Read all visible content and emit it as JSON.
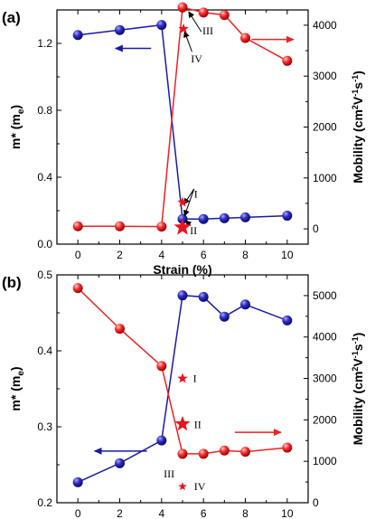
{
  "colors": {
    "blue": "#1a1aa6",
    "red": "#ee2222",
    "star": "#e8141e",
    "axis": "#000000"
  },
  "chart_data": [
    {
      "type": "line",
      "panel_label": "(a)",
      "xlabel": "Strain (%)",
      "ylabel_left": "m* (m",
      "ylabel_left_sub": "e",
      "ylabel_left_end": ")",
      "ylabel_right": "Mobility (cm",
      "ylabel_right_sup1": "2",
      "ylabel_right_mid": "V",
      "ylabel_right_sup2": "-1",
      "ylabel_right_mid2": "s",
      "ylabel_right_sup3": "-1",
      "ylabel_right_end": ")",
      "xlim": [
        -1,
        11
      ],
      "xticks": [
        0,
        2,
        4,
        6,
        8,
        10
      ],
      "ylim_left": [
        0.0,
        1.4
      ],
      "yticks_left": [
        0.0,
        0.4,
        0.8,
        1.2
      ],
      "ytick_labels_left": [
        "0.0",
        "0.4",
        "0.8",
        "1.2"
      ],
      "ylim_right": [
        -300,
        4300
      ],
      "yticks_right": [
        0,
        1000,
        2000,
        3000,
        4000
      ],
      "series": [
        {
          "axis": "left",
          "color": "blue",
          "x": [
            0,
            2,
            4,
            5,
            6,
            7,
            8,
            10
          ],
          "y": [
            1.25,
            1.28,
            1.31,
            0.15,
            0.15,
            0.155,
            0.16,
            0.17
          ]
        },
        {
          "axis": "right",
          "color": "red",
          "x": [
            0,
            2,
            4,
            5,
            6,
            7,
            8,
            10
          ],
          "y": [
            50,
            50,
            45,
            4350,
            4250,
            4200,
            3750,
            3300
          ]
        }
      ],
      "stars": [
        {
          "axis": "left",
          "x": 5.0,
          "y": 0.25,
          "size": 6
        },
        {
          "axis": "left",
          "x": 5.0,
          "y": 0.1,
          "size": 10
        },
        {
          "axis": "right",
          "x": 5.05,
          "y": 3930,
          "size": 6
        }
      ],
      "annotations": [
        {
          "text": "I",
          "axis": "left",
          "x": 5.55,
          "y": 0.3
        },
        {
          "text": "II",
          "axis": "left",
          "x": 5.35,
          "y": 0.08
        },
        {
          "text": "III",
          "axis": "right",
          "x": 5.95,
          "y": 3890
        },
        {
          "text": "IV",
          "axis": "right",
          "x": 5.4,
          "y": 3340
        }
      ],
      "pointer_arrows": [
        {
          "axis": "left",
          "from": [
            5.55,
            0.33
          ],
          "to": [
            5.08,
            0.24
          ]
        },
        {
          "axis": "left",
          "from": [
            5.55,
            0.33
          ],
          "to": [
            5.1,
            0.17
          ]
        },
        {
          "axis": "left",
          "from": [
            5.4,
            0.11
          ],
          "to": [
            5.15,
            0.14
          ]
        },
        {
          "axis": "right",
          "from": [
            5.9,
            3870
          ],
          "to": [
            5.3,
            4260
          ]
        },
        {
          "axis": "right",
          "from": [
            5.45,
            3480
          ],
          "to": [
            5.1,
            3870
          ]
        }
      ],
      "direction_arrows": [
        {
          "axis": "left",
          "from": [
            3.5,
            1.17
          ],
          "to": [
            1.8,
            1.17
          ],
          "color": "blue"
        },
        {
          "axis": "right",
          "from": [
            8.3,
            3720
          ],
          "to": [
            10.3,
            3720
          ],
          "color": "red"
        }
      ]
    },
    {
      "type": "line",
      "panel_label": "(b)",
      "xlabel": "Strain (%)",
      "ylabel_left": "m* (m",
      "ylabel_left_sub": "e",
      "ylabel_left_end": ")",
      "ylabel_right": "Mobility (cm",
      "ylabel_right_sup1": "2",
      "ylabel_right_mid": "V",
      "ylabel_right_sup2": "-1",
      "ylabel_right_mid2": "s",
      "ylabel_right_sup3": "-1",
      "ylabel_right_end": ")",
      "xlim": [
        -1,
        11
      ],
      "xticks": [
        0,
        2,
        4,
        6,
        8,
        10
      ],
      "ylim_left": [
        0.2,
        0.5
      ],
      "yticks_left": [
        0.2,
        0.3,
        0.4,
        0.5
      ],
      "ytick_labels_left": [
        "0.2",
        "0.3",
        "0.4",
        "0.5"
      ],
      "ylim_right": [
        0,
        5500
      ],
      "yticks_right": [
        0,
        1000,
        2000,
        3000,
        4000,
        5000
      ],
      "series": [
        {
          "axis": "left",
          "color": "blue",
          "x": [
            0,
            2,
            4,
            5,
            6,
            7,
            8,
            10
          ],
          "y": [
            0.227,
            0.252,
            0.282,
            0.473,
            0.471,
            0.445,
            0.461,
            0.44
          ]
        },
        {
          "axis": "right",
          "color": "red",
          "x": [
            0,
            2,
            4,
            5,
            6,
            7,
            8,
            10
          ],
          "y": [
            5180,
            4200,
            3300,
            1180,
            1180,
            1260,
            1230,
            1330
          ]
        }
      ],
      "stars": [
        {
          "axis": "right",
          "x": 5.0,
          "y": 3000,
          "size": 6
        },
        {
          "axis": "right",
          "x": 5.0,
          "y": 1900,
          "size": 9
        },
        {
          "axis": "right",
          "x": 5.0,
          "y": 390,
          "size": 5
        }
      ],
      "annotations": [
        {
          "text": "I",
          "axis": "right",
          "x": 5.5,
          "y": 3000
        },
        {
          "text": "II",
          "axis": "right",
          "x": 5.55,
          "y": 1890
        },
        {
          "text": "III",
          "axis": "left",
          "x": 4.1,
          "y": 0.238
        },
        {
          "text": "IV",
          "axis": "right",
          "x": 5.55,
          "y": 390
        }
      ],
      "pointer_arrows": [],
      "direction_arrows": [
        {
          "axis": "left",
          "from": [
            3.3,
            0.268
          ],
          "to": [
            0.8,
            0.268
          ],
          "color": "blue"
        },
        {
          "axis": "right",
          "from": [
            7.5,
            1700
          ],
          "to": [
            9.7,
            1700
          ],
          "color": "red"
        }
      ]
    }
  ]
}
